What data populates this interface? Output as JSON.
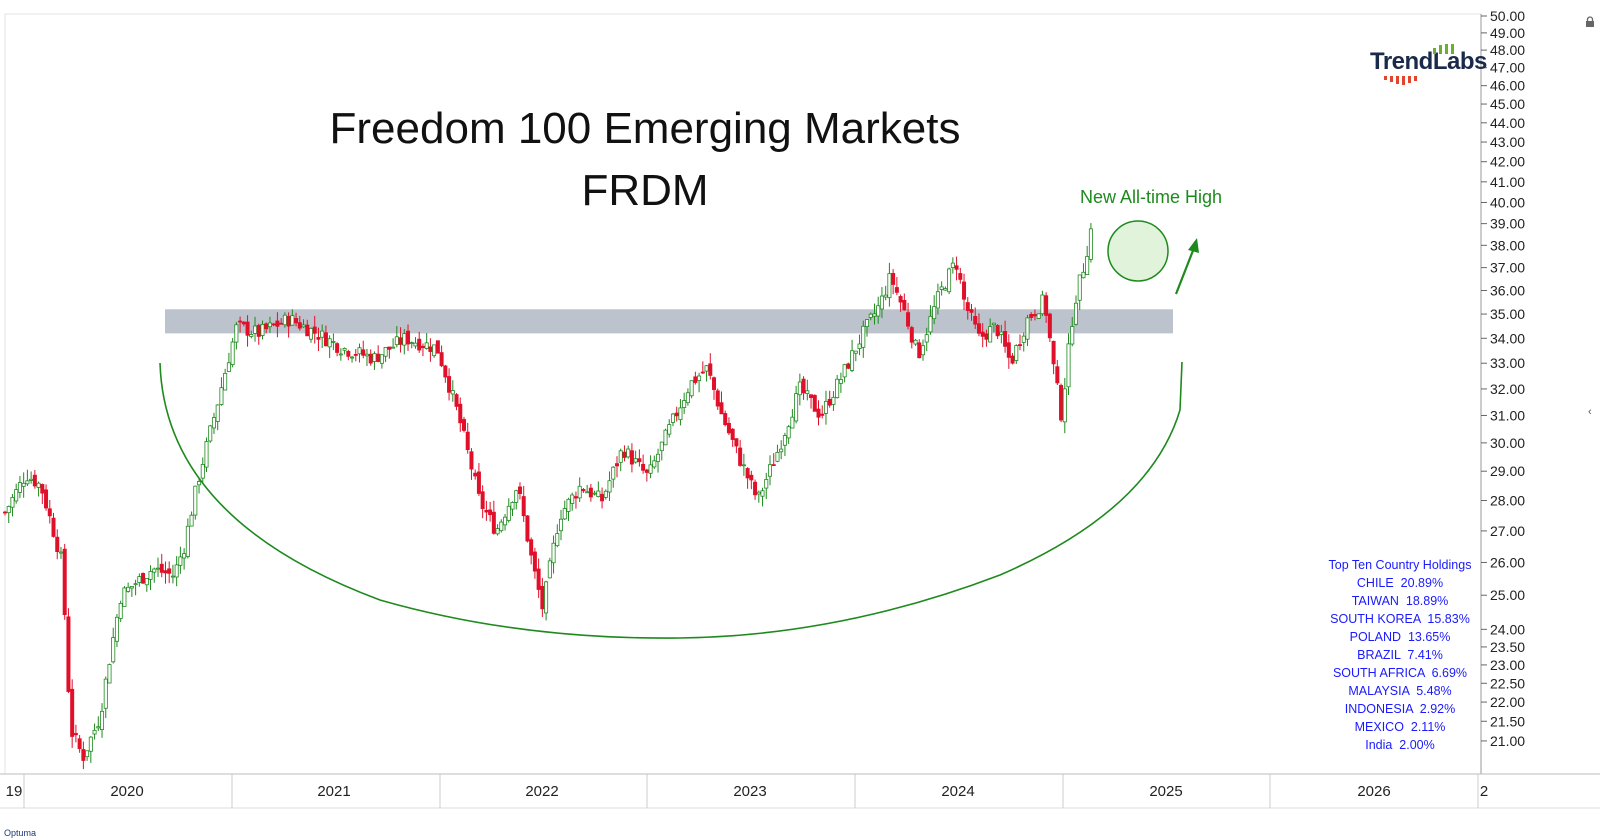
{
  "chart_data": {
    "type": "candlestick",
    "title": "Freedom 100 Emerging Markets",
    "subtitle": "FRDM",
    "y_scale": "log",
    "ylim": [
      20.6,
      50.0
    ],
    "y_ticks": [
      "50.00",
      "49.00",
      "48.00",
      "47.00",
      "46.00",
      "45.00",
      "44.00",
      "43.00",
      "42.00",
      "41.00",
      "40.00",
      "39.00",
      "38.00",
      "37.00",
      "36.00",
      "35.00",
      "34.00",
      "33.00",
      "32.00",
      "31.00",
      "30.00",
      "29.00",
      "28.00",
      "27.00",
      "26.00",
      "25.00",
      "24.00",
      "23.50",
      "23.00",
      "22.50",
      "22.00",
      "21.50",
      "21.00"
    ],
    "x_labels": [
      "19",
      "2020",
      "2021",
      "2022",
      "2023",
      "2024",
      "2025",
      "2026",
      "2"
    ],
    "xlim": [
      2019.85,
      2026.85
    ],
    "price_path": [
      [
        2019.85,
        27.6
      ],
      [
        2019.95,
        28.9
      ],
      [
        2020.02,
        28.5
      ],
      [
        2020.12,
        26.0
      ],
      [
        2020.16,
        21.3
      ],
      [
        2020.22,
        20.6
      ],
      [
        2020.3,
        21.6
      ],
      [
        2020.4,
        25.0
      ],
      [
        2020.55,
        25.8
      ],
      [
        2020.65,
        25.6
      ],
      [
        2020.7,
        26.5
      ],
      [
        2020.76,
        28.5
      ],
      [
        2020.85,
        31.2
      ],
      [
        2020.95,
        34.5
      ],
      [
        2021.05,
        34.2
      ],
      [
        2021.2,
        34.8
      ],
      [
        2021.35,
        34.1
      ],
      [
        2021.45,
        33.6
      ],
      [
        2021.6,
        33.2
      ],
      [
        2021.75,
        34.0
      ],
      [
        2021.9,
        33.6
      ],
      [
        2022.0,
        31.0
      ],
      [
        2022.1,
        28.0
      ],
      [
        2022.18,
        27.0
      ],
      [
        2022.28,
        28.5
      ],
      [
        2022.35,
        26.0
      ],
      [
        2022.4,
        24.6
      ],
      [
        2022.48,
        27.5
      ],
      [
        2022.58,
        28.5
      ],
      [
        2022.68,
        28.0
      ],
      [
        2022.78,
        29.8
      ],
      [
        2022.9,
        28.8
      ],
      [
        2023.0,
        30.5
      ],
      [
        2023.1,
        32.2
      ],
      [
        2023.18,
        32.8
      ],
      [
        2023.25,
        31.0
      ],
      [
        2023.33,
        29.5
      ],
      [
        2023.42,
        28.0
      ],
      [
        2023.52,
        29.8
      ],
      [
        2023.62,
        32.0
      ],
      [
        2023.72,
        31.0
      ],
      [
        2023.82,
        32.5
      ],
      [
        2023.92,
        34.2
      ],
      [
        2024.0,
        35.4
      ],
      [
        2024.05,
        36.6
      ],
      [
        2024.12,
        35.0
      ],
      [
        2024.18,
        33.3
      ],
      [
        2024.28,
        35.8
      ],
      [
        2024.36,
        37.3
      ],
      [
        2024.4,
        35.5
      ],
      [
        2024.47,
        34.0
      ],
      [
        2024.55,
        34.5
      ],
      [
        2024.62,
        33.0
      ],
      [
        2024.7,
        34.8
      ],
      [
        2024.78,
        35.6
      ],
      [
        2024.82,
        33.0
      ],
      [
        2024.86,
        31.0
      ],
      [
        2024.92,
        35.4
      ],
      [
        2024.97,
        37.2
      ],
      [
        2025.0,
        38.7
      ]
    ],
    "resistance_band": [
      34.2,
      35.2
    ],
    "annotations": [
      "New All-time High"
    ]
  },
  "holdings": {
    "title": "Top Ten Country Holdings",
    "rows": [
      "CHILE  20.89%",
      "TAIWAN  18.89%",
      "SOUTH KOREA  15.83%",
      "POLAND  13.65%",
      "BRAZIL  7.41%",
      "SOUTH AFRICA  6.69%",
      "MALAYSIA  5.48%",
      "INDONESIA  2.92%",
      "MEXICO  2.11%",
      "India  2.00%"
    ]
  },
  "logo": {
    "text": "TrendLabs"
  },
  "watermark": "Optuma",
  "colors": {
    "up": "#1e8a1e",
    "down": "#e0102a",
    "band": "#b6bcc6",
    "bowl": "#1e8a1e",
    "holdings_text": "#1a1aff",
    "logo_dark": "#1b2a4a",
    "logo_green": "#6ab02e",
    "logo_red": "#e2452b"
  }
}
